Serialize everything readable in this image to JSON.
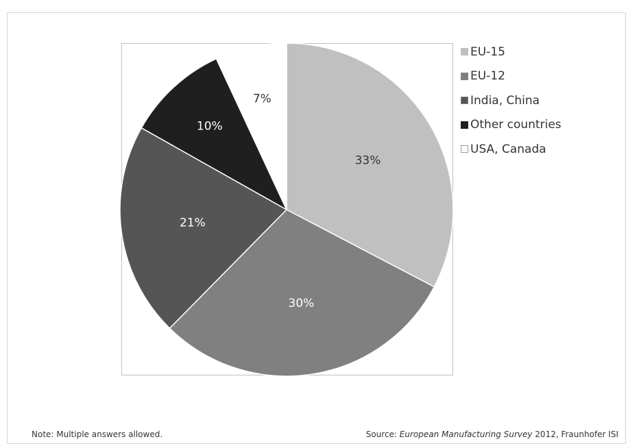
{
  "chart_data": {
    "type": "pie",
    "slices": [
      {
        "label": "EU-15",
        "value": 33,
        "display": "33%",
        "color": "#c0c0c0",
        "text_color": "#333333"
      },
      {
        "label": "EU-12",
        "value": 30,
        "display": "30%",
        "color": "#808080",
        "text_color": "#ffffff"
      },
      {
        "label": "India, China",
        "value": 21,
        "display": "21%",
        "color": "#555555",
        "text_color": "#ffffff"
      },
      {
        "label": "Other countries",
        "value": 10,
        "display": "10%",
        "color": "#1f1f1f",
        "text_color": "#ffffff"
      },
      {
        "label": "USA, Canada",
        "value": 7,
        "display": "7%",
        "color": "#ffffff",
        "text_color": "#333333"
      }
    ],
    "legend_placement": "right"
  },
  "footer": {
    "note": "Note: Multiple answers allowed.",
    "source_prefix": "Source: ",
    "source_italic": "European Manufacturing Survey",
    "source_suffix": " 2012,  Fraunhofer ISI"
  }
}
